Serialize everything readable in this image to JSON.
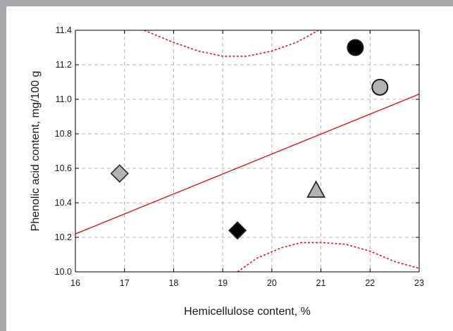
{
  "chart_data": {
    "type": "scatter",
    "title": "",
    "xlabel": "Hemicellulose content, %",
    "ylabel": "Phenolic acid content, mg/100 g",
    "xlim": [
      16,
      23
    ],
    "ylim": [
      10.0,
      11.4
    ],
    "x_ticks": [
      "16",
      "17",
      "18",
      "19",
      "20",
      "21",
      "22",
      "23"
    ],
    "y_ticks": [
      "10.0",
      "10.2",
      "10.4",
      "10.6",
      "10.8",
      "11.0",
      "11.2",
      "11.4"
    ],
    "grid": true,
    "points": [
      {
        "x": 16.9,
        "y": 10.57,
        "marker": "diamond",
        "color": "#b3b3b3"
      },
      {
        "x": 19.3,
        "y": 10.24,
        "marker": "diamond",
        "color": "#000000"
      },
      {
        "x": 20.9,
        "y": 10.47,
        "marker": "triangle",
        "color": "#b3b3b3"
      },
      {
        "x": 21.7,
        "y": 11.3,
        "marker": "circle",
        "color": "#000000"
      },
      {
        "x": 22.2,
        "y": 11.07,
        "marker": "circle",
        "color": "#b3b3b3"
      }
    ],
    "fit_line": {
      "x": [
        16,
        23
      ],
      "y": [
        10.22,
        11.03
      ],
      "color": "#e8141b",
      "style": "solid"
    },
    "confidence_band": {
      "color": "#e8141b",
      "style": "dotted",
      "upper": {
        "x": [
          17.4,
          18.0,
          18.5,
          19.0,
          19.5,
          20.0,
          20.5,
          20.95
        ],
        "y": [
          11.4,
          11.33,
          11.28,
          11.25,
          11.25,
          11.28,
          11.33,
          11.4
        ]
      },
      "lower": {
        "x": [
          19.3,
          19.7,
          20.2,
          20.6,
          21.0,
          21.5,
          22.0,
          22.5,
          23.0
        ],
        "y": [
          10.0,
          10.08,
          10.14,
          10.17,
          10.17,
          10.16,
          10.12,
          10.06,
          10.02
        ]
      }
    }
  }
}
